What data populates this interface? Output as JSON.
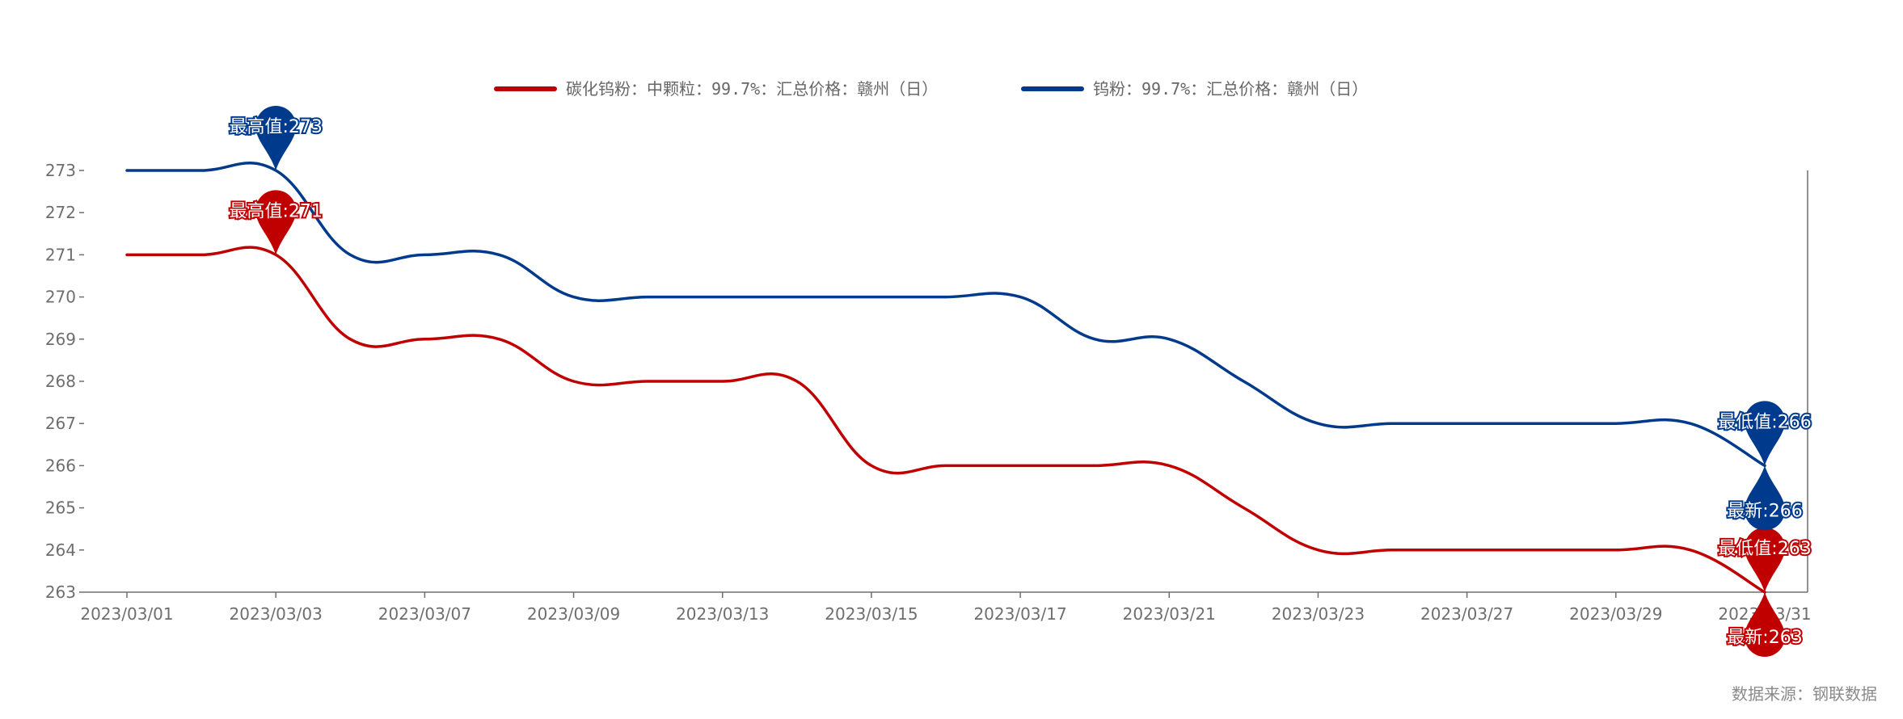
{
  "chart_data": {
    "type": "line",
    "x": [
      "2023/03/01",
      "2023/03/02",
      "2023/03/03",
      "2023/03/06",
      "2023/03/07",
      "2023/03/08",
      "2023/03/09",
      "2023/03/10",
      "2023/03/13",
      "2023/03/14",
      "2023/03/15",
      "2023/03/16",
      "2023/03/17",
      "2023/03/20",
      "2023/03/21",
      "2023/03/22",
      "2023/03/23",
      "2023/03/24",
      "2023/03/27",
      "2023/03/28",
      "2023/03/29",
      "2023/03/30",
      "2023/03/31"
    ],
    "x_tick_labels": [
      "2023/03/01",
      "2023/03/03",
      "2023/03/07",
      "2023/03/09",
      "2023/03/13",
      "2023/03/15",
      "2023/03/17",
      "2023/03/21",
      "2023/03/23",
      "2023/03/27",
      "2023/03/29",
      "2023/03/31"
    ],
    "y_tick_labels": [
      "263",
      "264",
      "265",
      "266",
      "267",
      "268",
      "269",
      "270",
      "271",
      "272",
      "273"
    ],
    "ylim": [
      263,
      273
    ],
    "series": [
      {
        "name": "碳化钨粉：中颗粒：99.7%：汇总价格：赣州（日）",
        "color": "#c00000",
        "values": [
          271,
          271,
          271,
          269,
          269,
          269,
          268,
          268,
          268,
          268,
          266,
          266,
          266,
          266,
          266,
          265,
          264,
          264,
          264,
          264,
          264,
          264,
          263
        ],
        "markers": [
          {
            "label": "最高值:271",
            "index": 2,
            "value": 271
          },
          {
            "label": "最低值:263",
            "index": 22,
            "value": 263
          },
          {
            "label": "最新:263",
            "index": 22,
            "value": 263
          }
        ]
      },
      {
        "name": "钨粉：99.7%：汇总价格：赣州（日）",
        "color": "#003a8c",
        "values": [
          273,
          273,
          273,
          271,
          271,
          271,
          270,
          270,
          270,
          270,
          270,
          270,
          270,
          269,
          269,
          268,
          267,
          267,
          267,
          267,
          267,
          267,
          266
        ],
        "markers": [
          {
            "label": "最高值:273",
            "index": 2,
            "value": 273
          },
          {
            "label": "最低值:266",
            "index": 22,
            "value": 266
          },
          {
            "label": "最新:266",
            "index": 22,
            "value": 266
          }
        ]
      }
    ],
    "legend_position": "top-center",
    "grid": false
  },
  "source": "数据来源：钢联数据"
}
